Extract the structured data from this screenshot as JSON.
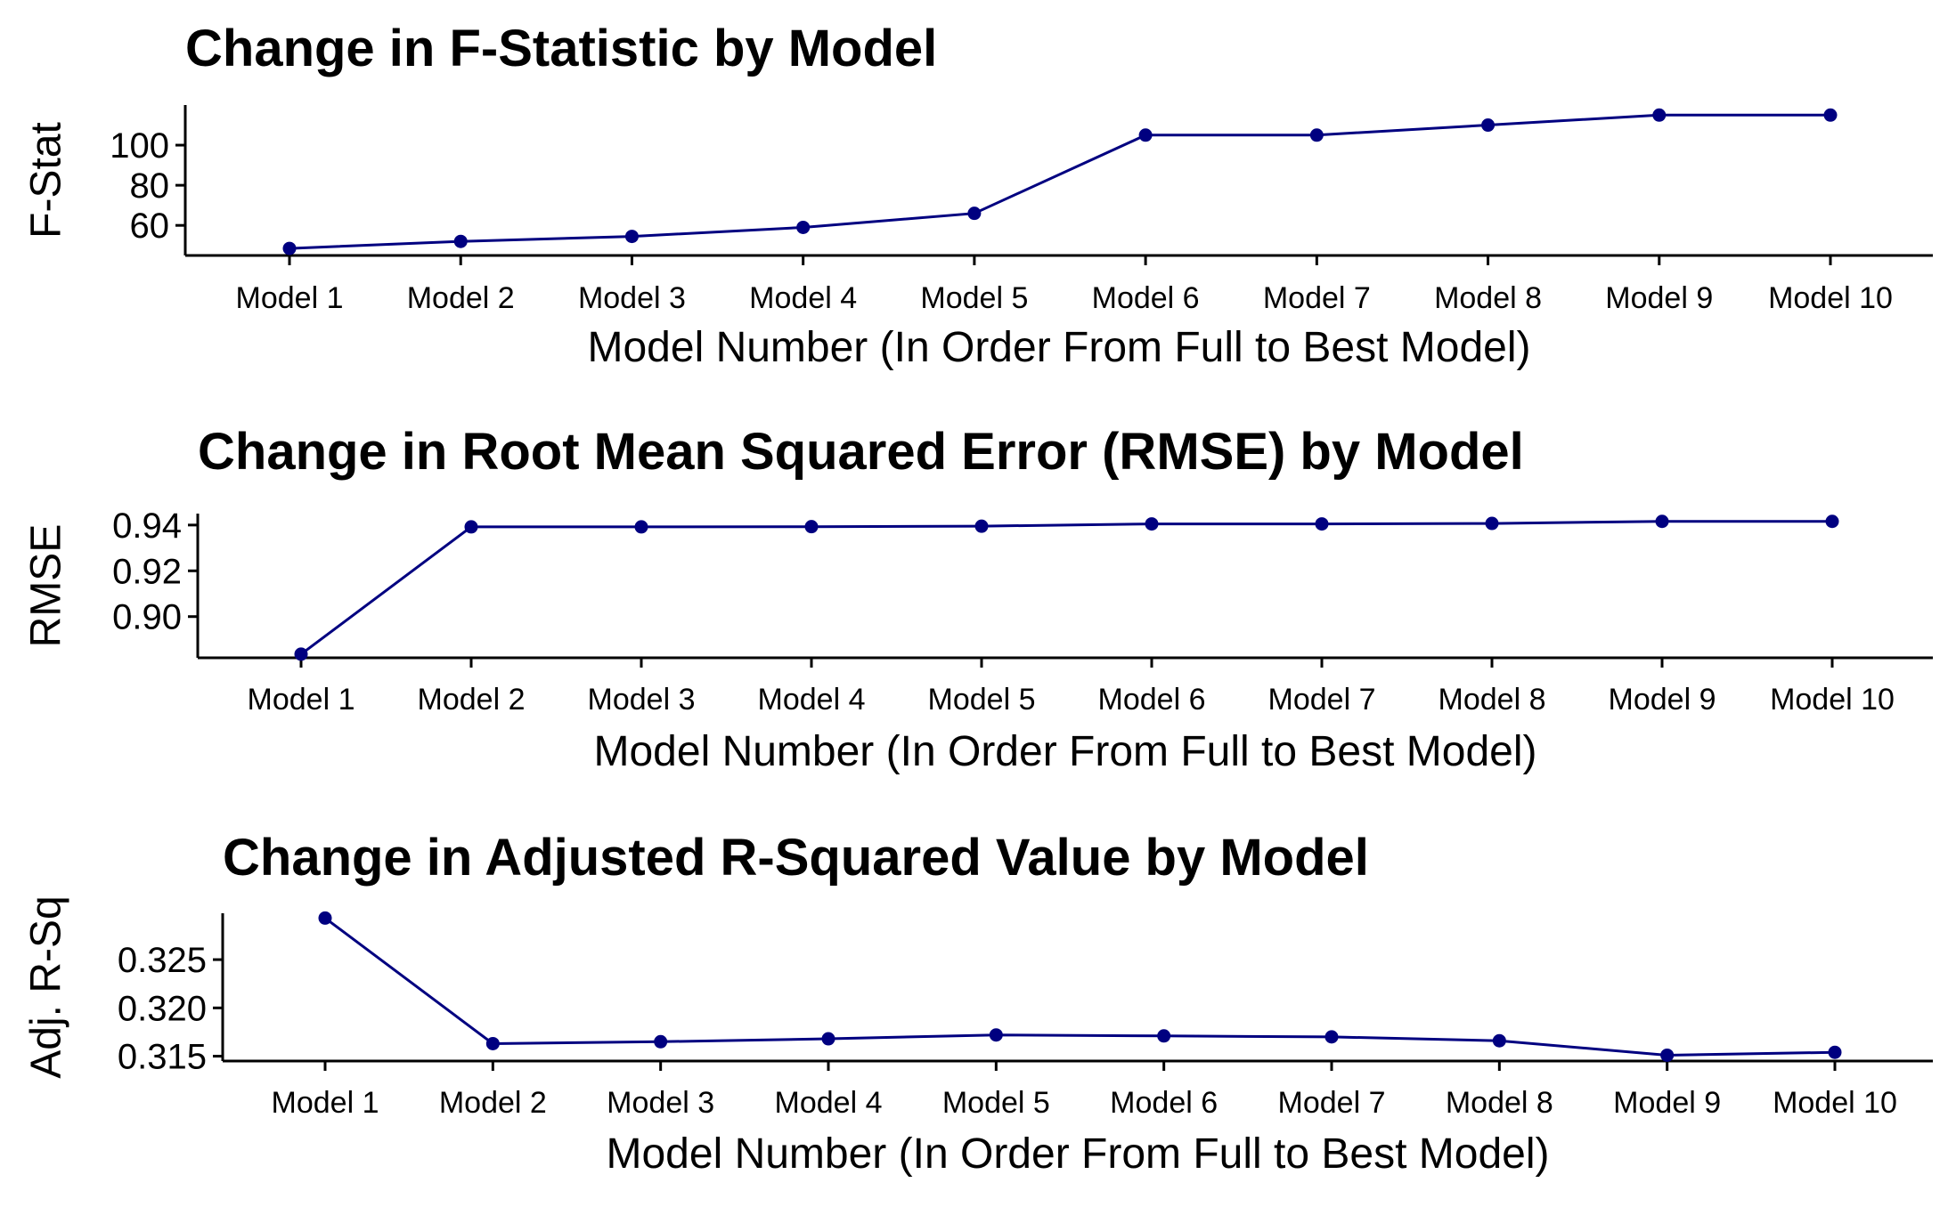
{
  "colors": {
    "series": "#000080",
    "axis": "#000000",
    "background": "#ffffff"
  },
  "chart_data": [
    {
      "type": "line",
      "title": "Change in F-Statistic by Model",
      "xlabel": "Model Number (In Order From Full to Best Model)",
      "ylabel": "F-Stat",
      "categories": [
        "Model 1",
        "Model 2",
        "Model 3",
        "Model 4",
        "Model 5",
        "Model 6",
        "Model 7",
        "Model 8",
        "Model 9",
        "Model 10"
      ],
      "values": [
        48.5,
        52,
        54.5,
        59,
        66,
        105,
        105,
        110,
        115,
        115
      ],
      "ylim": [
        45,
        120
      ],
      "yticks": [
        60,
        80,
        100
      ],
      "yticklabels": [
        "60",
        "80",
        "100"
      ],
      "grid": false,
      "legend": "none"
    },
    {
      "type": "line",
      "title": "Change in Root Mean Squared Error (RMSE) by Model",
      "xlabel": "Model Number (In Order From Full to Best Model)",
      "ylabel": "RMSE",
      "categories": [
        "Model 1",
        "Model 2",
        "Model 3",
        "Model 4",
        "Model 5",
        "Model 6",
        "Model 7",
        "Model 8",
        "Model 9",
        "Model 10"
      ],
      "values": [
        0.8836,
        0.9392,
        0.9392,
        0.9393,
        0.9395,
        0.9405,
        0.9405,
        0.9407,
        0.9416,
        0.9416
      ],
      "ylim": [
        0.882,
        0.945
      ],
      "yticks": [
        0.9,
        0.92,
        0.94
      ],
      "yticklabels": [
        "0.90",
        "0.92",
        "0.94"
      ],
      "grid": false,
      "legend": "none"
    },
    {
      "type": "line",
      "title": "Change in Adjusted R-Squared Value by Model",
      "xlabel": "Model Number (In Order From Full to Best Model)",
      "ylabel": "Adj. R-Sq",
      "categories": [
        "Model 1",
        "Model 2",
        "Model 3",
        "Model 4",
        "Model 5",
        "Model 6",
        "Model 7",
        "Model 8",
        "Model 9",
        "Model 10"
      ],
      "values": [
        0.3293,
        0.3163,
        0.3165,
        0.3168,
        0.3172,
        0.3171,
        0.317,
        0.3166,
        0.3151,
        0.3154
      ],
      "ylim": [
        0.3145,
        0.3298
      ],
      "yticks": [
        0.315,
        0.32,
        0.325
      ],
      "yticklabels": [
        "0.315",
        "0.320",
        "0.325"
      ],
      "grid": false,
      "legend": "none"
    }
  ]
}
